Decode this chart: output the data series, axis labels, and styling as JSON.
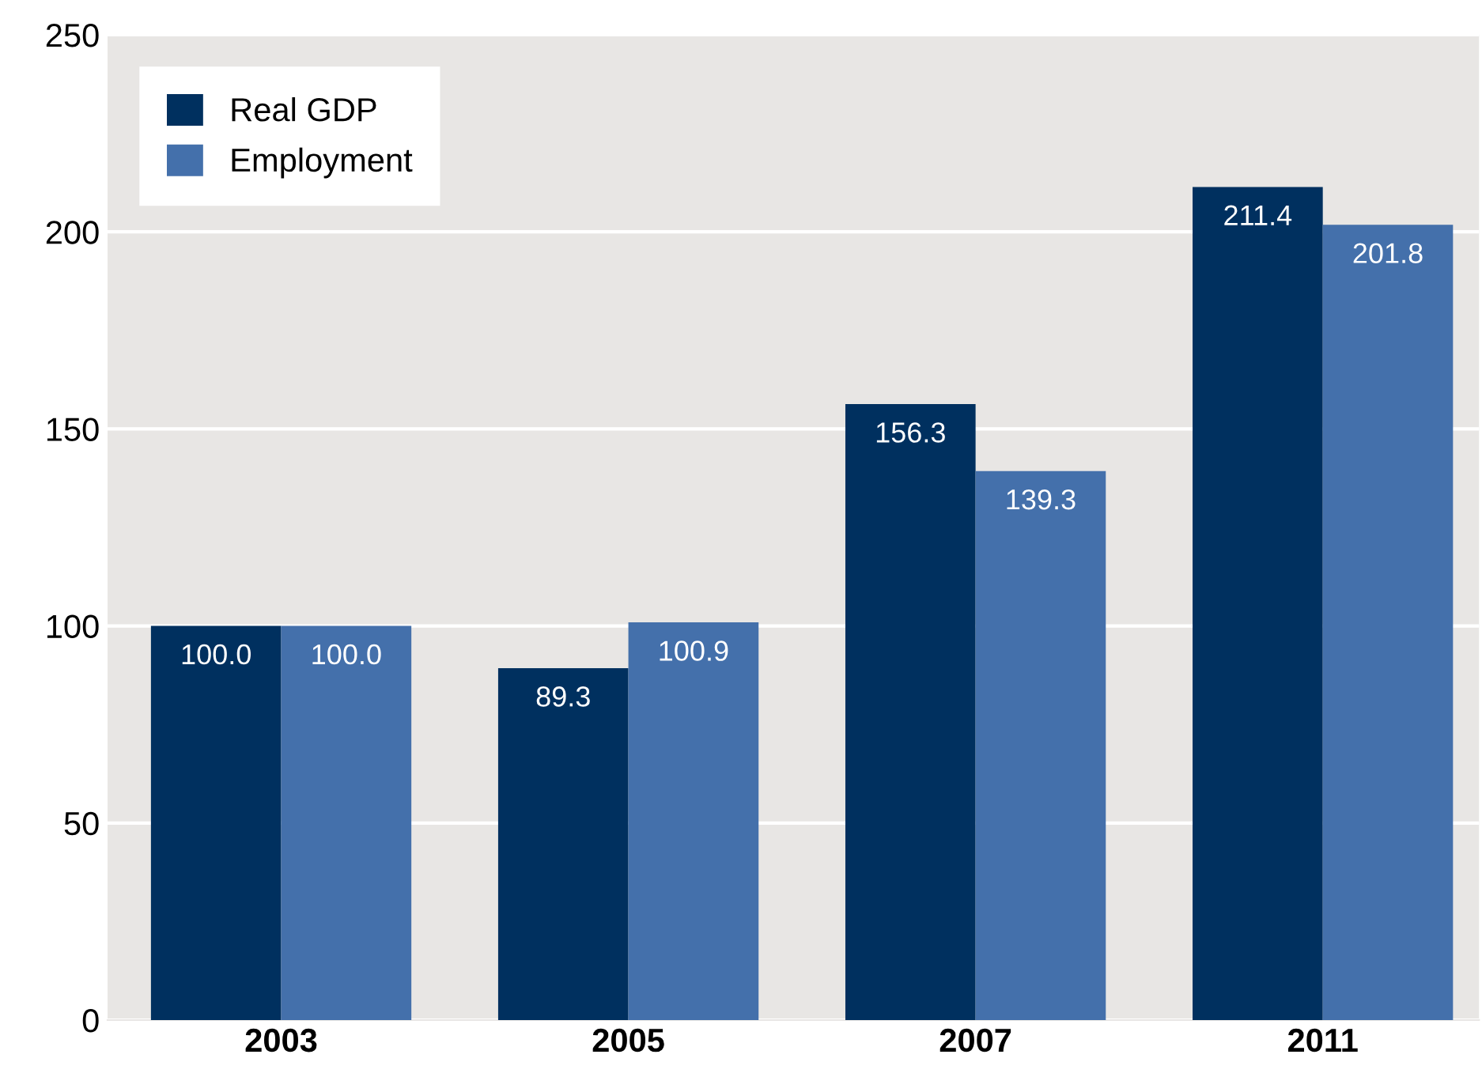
{
  "chart_data": {
    "type": "bar",
    "categories": [
      "2003",
      "2005",
      "2007",
      "2011"
    ],
    "series": [
      {
        "name": "Real GDP",
        "color": "#00305f",
        "values": [
          100,
          89.3,
          156.3,
          211.4
        ],
        "value_labels": [
          "100.0",
          "89.3",
          "156.3",
          "211.4"
        ]
      },
      {
        "name": "Employment",
        "color": "#4470ab",
        "values": [
          100,
          100.9,
          139.3,
          201.8
        ],
        "value_labels": [
          "100.0",
          "100.9",
          "139.3",
          "201.8"
        ]
      }
    ],
    "ylim": [
      0,
      250
    ],
    "yticks": [
      0,
      50,
      100,
      150,
      200,
      250
    ],
    "grid": "y",
    "legend": "top left"
  }
}
